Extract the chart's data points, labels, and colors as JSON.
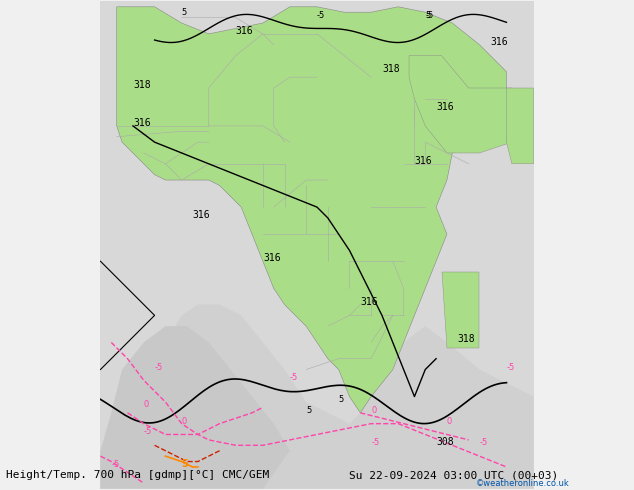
{
  "title_left": "Height/Temp. 700 hPa [gdmp][°C] CMC/GEM",
  "title_right": "Su 22-09-2024 03:00 UTC (00+03)",
  "credit": "©weatheronline.co.uk",
  "credit_color": "#0055aa",
  "background_color": "#f0f0f0",
  "land_green_color": "#aadd88",
  "land_gray_color": "#dddddd",
  "ocean_color": "#e8e8e8",
  "border_color": "#aaaaaa",
  "contour_color_black": "#000000",
  "contour_color_pink": "#ff44aa",
  "contour_color_red": "#cc2200",
  "contour_color_orange": "#ff8800",
  "label_fontsize": 7,
  "title_fontsize": 8,
  "figsize": [
    6.34,
    4.9
  ],
  "dpi": 100
}
